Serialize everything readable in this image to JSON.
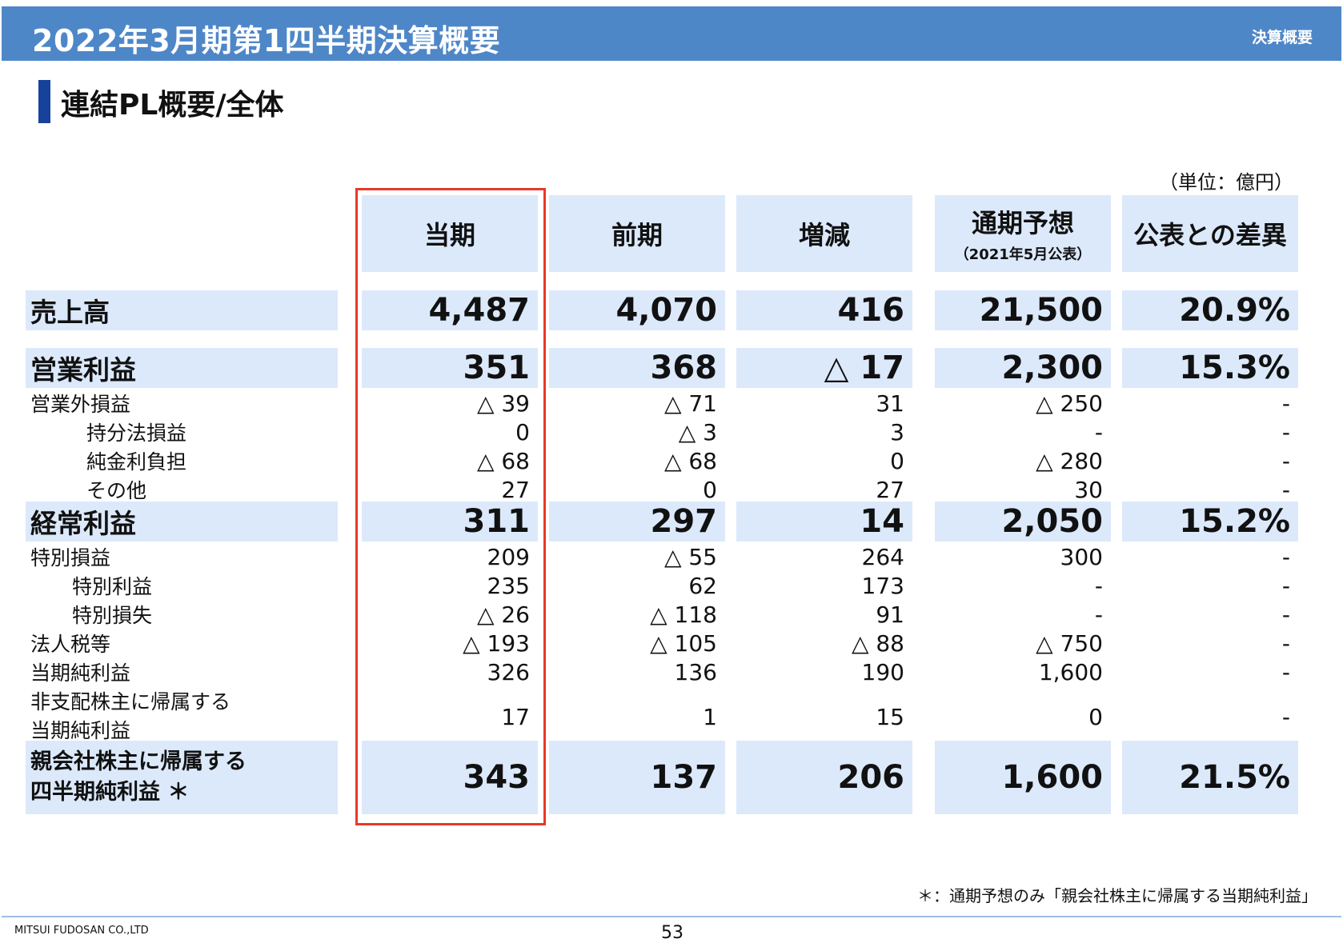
{
  "header": {
    "title": "2022年3月期第1四半期決算概要",
    "tag": "決算概要"
  },
  "section": {
    "title": "連結PL概要/全体"
  },
  "unit": "（単位：億円）",
  "columns": [
    {
      "label": "当期",
      "sub": ""
    },
    {
      "label": "前期",
      "sub": ""
    },
    {
      "label": "増減",
      "sub": ""
    },
    {
      "label": "通期予想",
      "sub": "（2021年5月公表）"
    },
    {
      "label": "公表との差異",
      "sub": ""
    }
  ],
  "rows": [
    {
      "label": "売上高",
      "label2": "",
      "values": [
        "4,487",
        "4,070",
        "416",
        "21,500",
        "20.9%"
      ]
    },
    {
      "label": "営業利益",
      "label2": "",
      "values": [
        "351",
        "368",
        "△ 17",
        "2,300",
        "15.3%"
      ]
    },
    {
      "label": "営業外損益",
      "label2": "",
      "values": [
        "△ 39",
        "△ 71",
        "31",
        "△ 250",
        "-"
      ]
    },
    {
      "label": "持分法損益",
      "label2": "",
      "values": [
        "0",
        "△ 3",
        "3",
        "-",
        "-"
      ]
    },
    {
      "label": "純金利負担",
      "label2": "",
      "values": [
        "△ 68",
        "△ 68",
        "0",
        "△ 280",
        "-"
      ]
    },
    {
      "label": "その他",
      "label2": "",
      "values": [
        "27",
        "0",
        "27",
        "30",
        "-"
      ]
    },
    {
      "label": "経常利益",
      "label2": "",
      "values": [
        "311",
        "297",
        "14",
        "2,050",
        "15.2%"
      ]
    },
    {
      "label": "特別損益",
      "label2": "",
      "values": [
        "209",
        "△ 55",
        "264",
        "300",
        "-"
      ]
    },
    {
      "label": "特別利益",
      "label2": "",
      "values": [
        "235",
        "62",
        "173",
        "-",
        "-"
      ]
    },
    {
      "label": "特別損失",
      "label2": "",
      "values": [
        "△ 26",
        "△ 118",
        "91",
        "-",
        "-"
      ]
    },
    {
      "label": "法人税等",
      "label2": "",
      "values": [
        "△ 193",
        "△ 105",
        "△ 88",
        "△ 750",
        "-"
      ]
    },
    {
      "label": "当期純利益",
      "label2": "",
      "values": [
        "326",
        "136",
        "190",
        "1,600",
        "-"
      ]
    },
    {
      "label": "非支配株主に帰属する",
      "label2": "当期純利益",
      "values": [
        "17",
        "1",
        "15",
        "0",
        "-"
      ]
    },
    {
      "label": "親会社株主に帰属する",
      "label2": "四半期純利益 ＊",
      "values": [
        "343",
        "137",
        "206",
        "1,600",
        "21.5%"
      ]
    }
  ],
  "footnote": "＊：通期予想のみ「親会社株主に帰属する当期純利益」",
  "footer": {
    "company": "MITSUI FUDOSAN CO.,LTD",
    "page": "53"
  },
  "colors": {
    "header": "#4e87c8",
    "highlight_fill": "#dce9fb",
    "accent_bar": "#17429b",
    "box": "#e8392a"
  }
}
